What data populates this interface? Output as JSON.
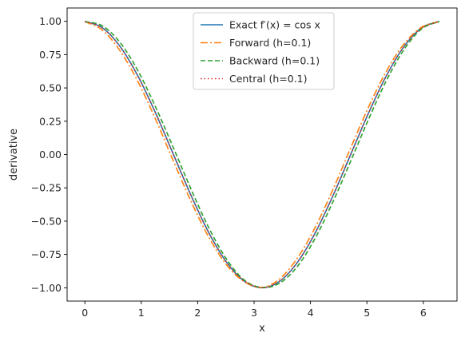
{
  "chart_data": {
    "type": "line",
    "xlabel": "x",
    "ylabel": "derivative",
    "xlim": [
      -0.31416,
      6.59734
    ],
    "ylim": [
      -1.1,
      1.1
    ],
    "x_ticks": [
      0,
      1,
      2,
      3,
      4,
      5,
      6
    ],
    "x_tick_labels": [
      "0",
      "1",
      "2",
      "3",
      "4",
      "5",
      "6"
    ],
    "y_ticks": [
      -1.0,
      -0.75,
      -0.5,
      -0.25,
      0.0,
      0.25,
      0.5,
      0.75,
      1.0
    ],
    "y_tick_labels": [
      "−1.00",
      "−0.75",
      "−0.50",
      "−0.25",
      "0.00",
      "0.25",
      "0.50",
      "0.75",
      "1.00"
    ],
    "grid": false,
    "legend_position": "upper center",
    "series": [
      {
        "name": "Exact f′(x) = cos x",
        "color": "#1f77b4",
        "style": "solid",
        "x": [
          0,
          0.31416,
          0.62832,
          0.94248,
          1.25664,
          1.5708,
          1.88496,
          2.19911,
          2.51327,
          2.82743,
          3.14159,
          3.45575,
          3.76991,
          4.08407,
          4.39823,
          4.71239,
          5.02655,
          5.34071,
          5.65487,
          5.96903,
          6.28319
        ],
        "y": [
          1,
          0.951,
          0.809,
          0.588,
          0.309,
          0,
          -0.309,
          -0.588,
          -0.809,
          -0.951,
          -1,
          -0.951,
          -0.809,
          -0.588,
          -0.309,
          0,
          0.309,
          0.588,
          0.809,
          0.951,
          1
        ]
      },
      {
        "name": "Forward (h=0.1)",
        "color": "#ff7f0e",
        "style": "dashdot",
        "x": [
          0,
          0.31416,
          0.62832,
          0.94248,
          1.25664,
          1.5708,
          1.88496,
          2.19911,
          2.51327,
          2.82743,
          3.14159,
          3.45575,
          3.76991,
          4.08407,
          4.39823,
          4.71239,
          5.02655,
          5.34071,
          5.65487,
          5.96903,
          6.28319
        ],
        "y": [
          0.998,
          0.933,
          0.776,
          0.546,
          0.262,
          -0.05,
          -0.354,
          -0.622,
          -0.829,
          -0.955,
          -0.998,
          -0.933,
          -0.776,
          -0.546,
          -0.262,
          0.05,
          0.354,
          0.622,
          0.829,
          0.955,
          0.998
        ]
      },
      {
        "name": "Backward (h=0.1)",
        "color": "#2ca02c",
        "style": "dashed",
        "x": [
          0,
          0.31416,
          0.62832,
          0.94248,
          1.25664,
          1.5708,
          1.88496,
          2.19911,
          2.51327,
          2.82743,
          3.14159,
          3.45575,
          3.76991,
          4.08407,
          4.39823,
          4.71239,
          5.02655,
          5.34071,
          5.65487,
          5.96903,
          6.28319
        ],
        "y": [
          0.998,
          0.965,
          0.839,
          0.628,
          0.355,
          0.05,
          -0.262,
          -0.551,
          -0.786,
          -0.943,
          -0.998,
          -0.965,
          -0.839,
          -0.628,
          -0.355,
          -0.05,
          0.262,
          0.551,
          0.786,
          0.943,
          0.998
        ]
      },
      {
        "name": "Central (h=0.1)",
        "color": "#d62728",
        "style": "dotted",
        "x": [
          0,
          0.31416,
          0.62832,
          0.94248,
          1.25664,
          1.5708,
          1.88496,
          2.19911,
          2.51327,
          2.82743,
          3.14159,
          3.45575,
          3.76991,
          4.08407,
          4.39823,
          4.71239,
          5.02655,
          5.34071,
          5.65487,
          5.96903,
          6.28319
        ],
        "y": [
          0.998,
          0.949,
          0.808,
          0.587,
          0.309,
          0,
          -0.309,
          -0.587,
          -0.808,
          -0.949,
          -0.998,
          -0.949,
          -0.808,
          -0.587,
          -0.309,
          0,
          0.309,
          0.587,
          0.808,
          0.949,
          0.998
        ]
      }
    ]
  }
}
